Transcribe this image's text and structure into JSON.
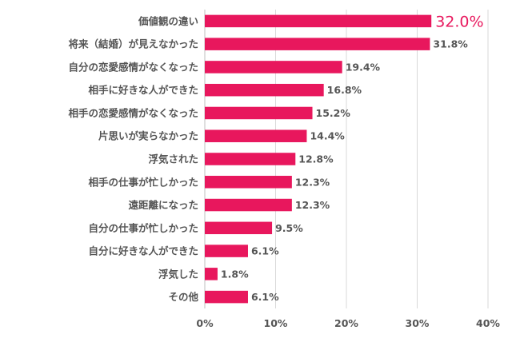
{
  "chart_data": {
    "type": "bar",
    "orientation": "horizontal",
    "title": "",
    "xlabel": "",
    "ylabel": "",
    "xlim": [
      0,
      40
    ],
    "x_ticks": [
      0,
      10,
      20,
      30,
      40
    ],
    "x_tick_labels": [
      "0%",
      "10%",
      "20%",
      "30%",
      "40%"
    ],
    "grid": true,
    "categories": [
      "価値観の違い",
      "将来（結婚）が見えなかった",
      "自分の恋愛感情がなくなった",
      "相手に好きな人ができた",
      "相手の恋愛感情がなくなった",
      "片思いが実らなかった",
      "浮気された",
      "相手の仕事が忙しかった",
      "遠距離になった",
      "自分の仕事が忙しかった",
      "自分に好きな人ができた",
      "浮気した",
      "その他"
    ],
    "values": [
      32.0,
      31.8,
      19.4,
      16.8,
      15.2,
      14.4,
      12.8,
      12.3,
      12.3,
      9.5,
      6.1,
      1.8,
      6.1
    ],
    "value_labels": [
      "32.0%",
      "31.8%",
      "19.4%",
      "16.8%",
      "15.2%",
      "14.4%",
      "12.8%",
      "12.3%",
      "12.3%",
      "9.5%",
      "6.1%",
      "1.8%",
      "6.1%"
    ],
    "highlight_index": 0,
    "bar_color": "#e8175d",
    "highlight_label_color": "#e8175d",
    "text_color": "#555555",
    "grid_color": "#d9d9d9"
  }
}
